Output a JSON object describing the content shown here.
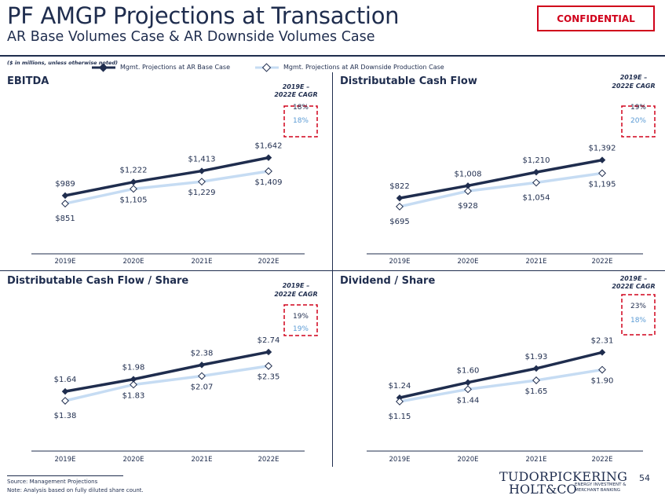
{
  "header": {
    "title": "PF AMGP Projections at Transaction",
    "subtitle": "AR Base Volumes Case & AR Downside Volumes Case",
    "confidential": "CONFIDENTIAL",
    "units_note": "($ in millions, unless otherwise noted)"
  },
  "legend": {
    "base_label": "Mgmt. Projections at AR Base Case",
    "downside_label": "Mgmt. Projections at AR Downside Production Case"
  },
  "colors": {
    "base": "#1f2d4e",
    "downside": "#c6dcf3",
    "downside_text": "#5b9bd5",
    "cagr_box": "#d0021b"
  },
  "chart_data": [
    {
      "type": "line",
      "title": "EBITDA",
      "categories": [
        "2019E",
        "2020E",
        "2021E",
        "2022E"
      ],
      "series": [
        {
          "name": "Mgmt. Projections at AR Base Case",
          "values": [
            989,
            1222,
            1413,
            1642
          ],
          "labels": [
            "$989",
            "$1,222",
            "$1,413",
            "$1,642"
          ]
        },
        {
          "name": "Mgmt. Projections at AR Downside Production Case",
          "values": [
            851,
            1105,
            1229,
            1409
          ],
          "labels": [
            "$851",
            "$1,105",
            "$1,229",
            "$1,409"
          ]
        }
      ],
      "cagr_title": [
        "2019E –",
        "2022E CAGR"
      ],
      "cagr": [
        "18%",
        "18%"
      ],
      "ylim": [
        0,
        2300
      ]
    },
    {
      "type": "line",
      "title": "Distributable Cash Flow",
      "categories": [
        "2019E",
        "2020E",
        "2021E",
        "2022E"
      ],
      "series": [
        {
          "name": "Mgmt. Projections at AR Base Case",
          "values": [
            822,
            1008,
            1210,
            1392
          ],
          "labels": [
            "$822",
            "$1,008",
            "$1,210",
            "$1,392"
          ]
        },
        {
          "name": "Mgmt. Projections at AR Downside Production Case",
          "values": [
            695,
            928,
            1054,
            1195
          ],
          "labels": [
            "$695",
            "$928",
            "$1,054",
            "$1,195"
          ]
        }
      ],
      "cagr_title": [
        "2019E –",
        "2022E CAGR"
      ],
      "cagr": [
        "19%",
        "20%"
      ],
      "ylim": [
        0,
        2000
      ]
    },
    {
      "type": "line",
      "title": "Distributable Cash Flow / Share",
      "categories": [
        "2019E",
        "2020E",
        "2021E",
        "2022E"
      ],
      "series": [
        {
          "name": "Mgmt. Projections at AR Base Case",
          "values": [
            1.64,
            1.98,
            2.38,
            2.74
          ],
          "labels": [
            "$1.64",
            "$1.98",
            "$2.38",
            "$2.74"
          ]
        },
        {
          "name": "Mgmt. Projections at AR Downside Production Case",
          "values": [
            1.38,
            1.83,
            2.07,
            2.35
          ],
          "labels": [
            "$1.38",
            "$1.83",
            "$2.07",
            "$2.35"
          ]
        }
      ],
      "cagr_title": [
        "2019E –",
        "2022E CAGR"
      ],
      "cagr": [
        "19%",
        "19%"
      ],
      "ylim": [
        0,
        3.9
      ]
    },
    {
      "type": "line",
      "title": "Dividend / Share",
      "categories": [
        "2019E",
        "2020E",
        "2021E",
        "2022E"
      ],
      "series": [
        {
          "name": "Mgmt. Projections at AR Base Case",
          "values": [
            1.24,
            1.6,
            1.93,
            2.31
          ],
          "labels": [
            "$1.24",
            "$1.60",
            "$1.93",
            "$2.31"
          ]
        },
        {
          "name": "Mgmt. Projections at AR Downside Production Case",
          "values": [
            1.15,
            1.44,
            1.65,
            1.9
          ],
          "labels": [
            "$1.15",
            "$1.44",
            "$1.65",
            "$1.90"
          ]
        }
      ],
      "cagr_title": [
        "2019E –",
        "2022E CAGR"
      ],
      "cagr": [
        "23%",
        "18%"
      ],
      "ylim": [
        0,
        3.3
      ]
    }
  ],
  "footer": {
    "source": "Source: Management Projections",
    "note": "Note: Analysis based on fully diluted share count.",
    "logo_line1": "TUDORPICKERING",
    "logo_line2": "HOLT&CO",
    "logo_tag1": "ENERGY INVESTMENT &",
    "logo_tag2": "MERCHANT BANKING",
    "page": "54"
  }
}
